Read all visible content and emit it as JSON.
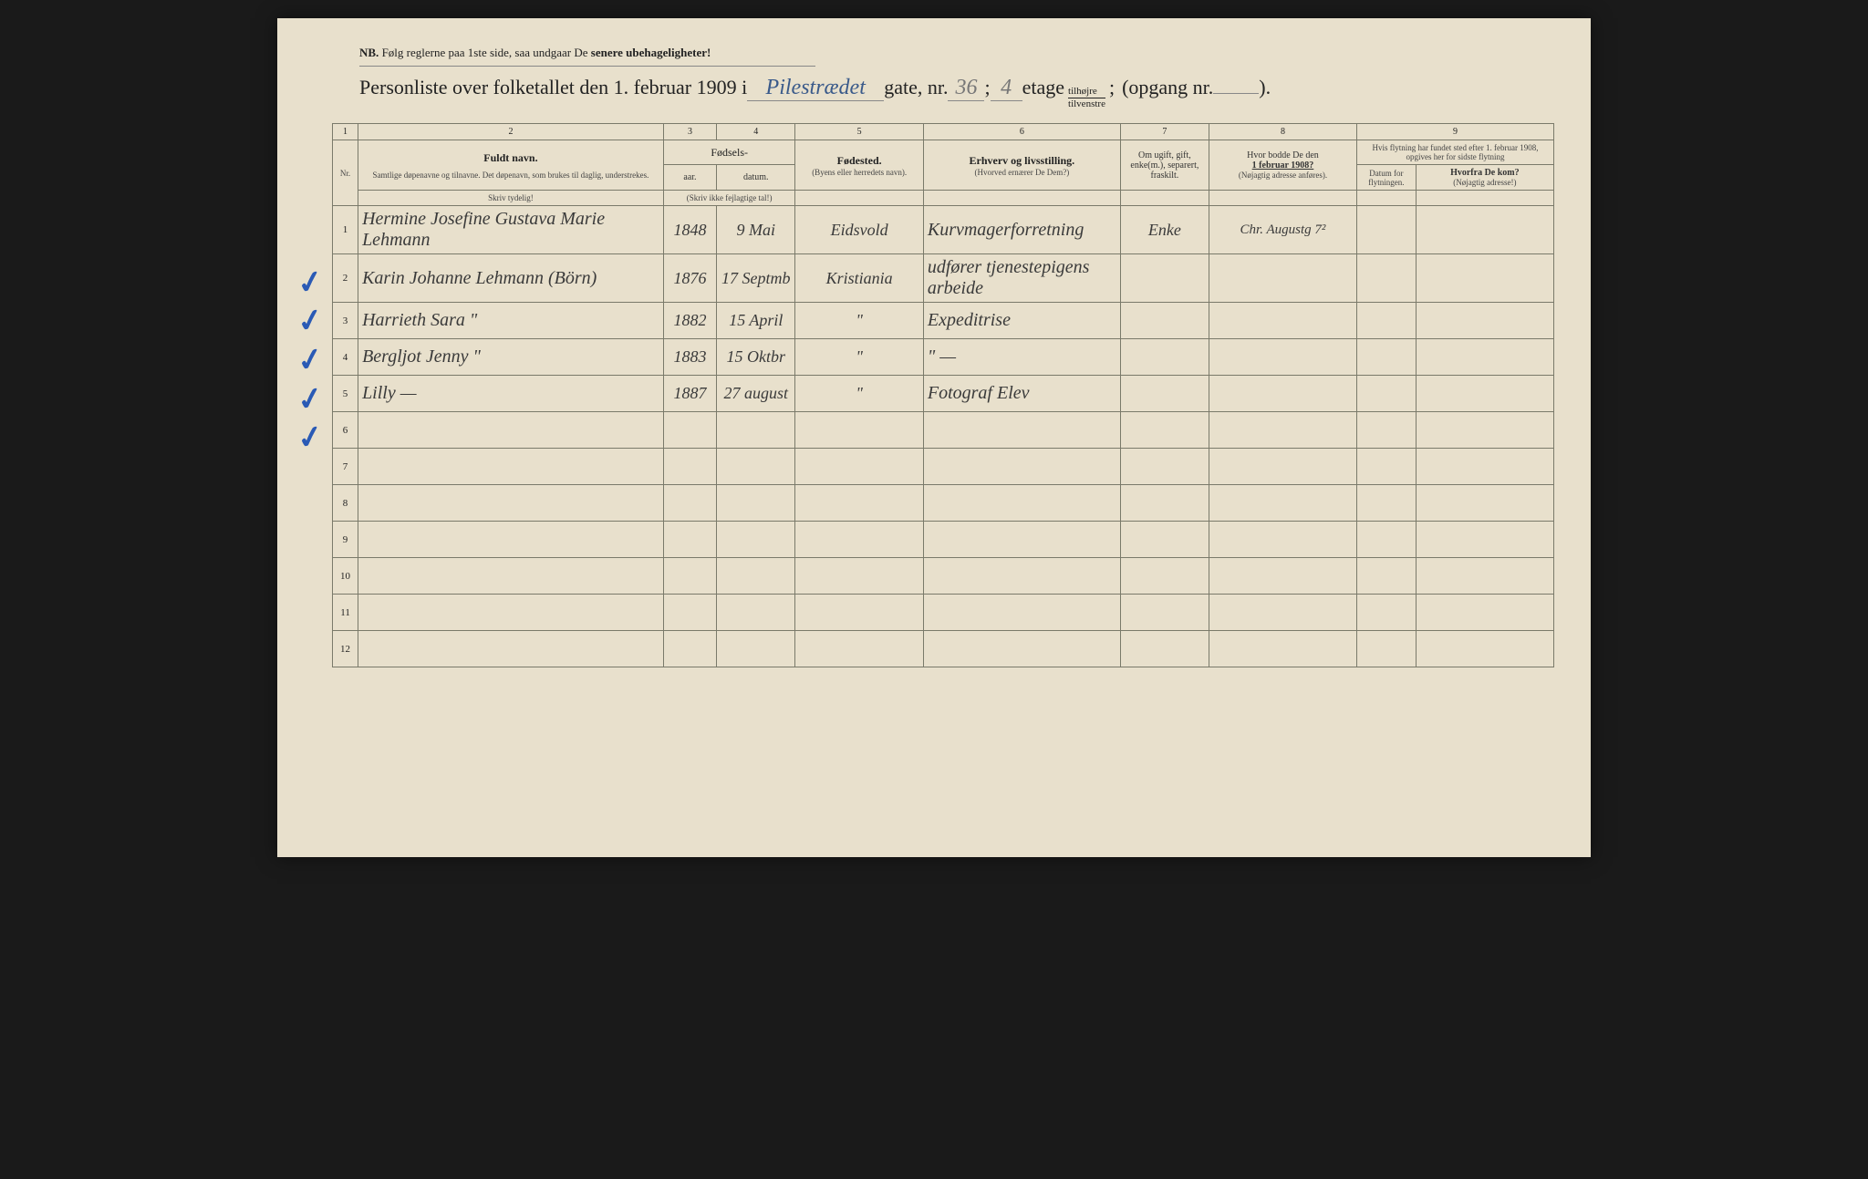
{
  "nb": {
    "prefix": "NB.",
    "text": "Følg reglerne paa 1ste side, saa undgaar De",
    "bold": "senere ubehageligheter!"
  },
  "title": {
    "part1": "Personliste over folketallet den 1. februar 1909 i",
    "street": "Pilestrædet",
    "part2": "gate, nr.",
    "nr": "36",
    "semicolon": ";",
    "floor": "4",
    "part3": "etage",
    "frac_top": "tilhøjre",
    "frac_bot": "tilvenstre",
    "semicolon2": ";",
    "part4": "(opgang  nr.",
    "opgang": "",
    "part5": ")."
  },
  "cols": {
    "c1": "1",
    "c2": "2",
    "c3": "3",
    "c4": "4",
    "c5": "5",
    "c6": "6",
    "c7": "7",
    "c8": "8",
    "c9": "9"
  },
  "hdr": {
    "name_main": "Fuldt navn.",
    "name_sub": "Samtlige døpenavne og tilnavne. Det døpenavn, som brukes til daglig, understrekes.",
    "name_note": "Skriv tydelig!",
    "birth_main": "Fødsels-",
    "year": "aar.",
    "date": "datum.",
    "birth_note": "(Skriv ikke fejlagtige tal!)",
    "place_main": "Fødested.",
    "place_sub": "(Byens eller herredets navn).",
    "occ_main": "Erhverv og livsstilling.",
    "occ_sub": "(Hvorved ernærer De Dem?)",
    "marital": "Om ugift, gift, enke(m.), separert, fraskilt.",
    "prev_main": "Hvor bodde De den",
    "prev_date": "1 februar 1908?",
    "prev_sub": "(Nøjagtig adresse anføres).",
    "move_main": "Hvis flytning har fundet sted efter 1. februar 1908, opgives her for sidste flytning",
    "move_date": "Datum for flytningen.",
    "move_from": "Hvorfra De kom?",
    "move_from_sub": "(Nøjagtig adresse!)",
    "nr": "Nr."
  },
  "rows": [
    {
      "n": "1",
      "name": "Hermine Josefine Gustava Marie Lehmann",
      "year": "1848",
      "date": "9 Mai",
      "place": "Eidsvold",
      "occ": "Kurvmagerforretning",
      "marital": "Enke",
      "prev": "Chr. Augustg 7²",
      "movedate": "",
      "from": ""
    },
    {
      "n": "2",
      "name": "Karin Johanne Lehmann (Börn)",
      "year": "1876",
      "date": "17 Septmb",
      "place": "Kristiania",
      "occ": "udfører tjenestepigens arbeide",
      "marital": "",
      "prev": "",
      "movedate": "",
      "from": ""
    },
    {
      "n": "3",
      "name": "Harrieth Sara        \"",
      "year": "1882",
      "date": "15 April",
      "place": "\"",
      "occ": "Expeditrise",
      "marital": "",
      "prev": "",
      "movedate": "",
      "from": ""
    },
    {
      "n": "4",
      "name": "Bergljot Jenny        \"",
      "year": "1883",
      "date": "15 Oktbr",
      "place": "\"",
      "occ": "\"     —",
      "marital": "",
      "prev": "",
      "movedate": "",
      "from": ""
    },
    {
      "n": "5",
      "name": "Lilly                 —",
      "year": "1887",
      "date": "27 august",
      "place": "\"",
      "occ": "Fotograf Elev",
      "marital": "",
      "prev": "",
      "movedate": "",
      "from": ""
    },
    {
      "n": "6",
      "name": "",
      "year": "",
      "date": "",
      "place": "",
      "occ": "",
      "marital": "",
      "prev": "",
      "movedate": "",
      "from": ""
    },
    {
      "n": "7",
      "name": "",
      "year": "",
      "date": "",
      "place": "",
      "occ": "",
      "marital": "",
      "prev": "",
      "movedate": "",
      "from": ""
    },
    {
      "n": "8",
      "name": "",
      "year": "",
      "date": "",
      "place": "",
      "occ": "",
      "marital": "",
      "prev": "",
      "movedate": "",
      "from": ""
    },
    {
      "n": "9",
      "name": "",
      "year": "",
      "date": "",
      "place": "",
      "occ": "",
      "marital": "",
      "prev": "",
      "movedate": "",
      "from": ""
    },
    {
      "n": "10",
      "name": "",
      "year": "",
      "date": "",
      "place": "",
      "occ": "",
      "marital": "",
      "prev": "",
      "movedate": "",
      "from": ""
    },
    {
      "n": "11",
      "name": "",
      "year": "",
      "date": "",
      "place": "",
      "occ": "",
      "marital": "",
      "prev": "",
      "movedate": "",
      "from": ""
    },
    {
      "n": "12",
      "name": "",
      "year": "",
      "date": "",
      "place": "",
      "occ": "",
      "marital": "",
      "prev": "",
      "movedate": "",
      "from": ""
    }
  ],
  "checks": [
    270,
    312,
    355,
    398,
    440
  ]
}
